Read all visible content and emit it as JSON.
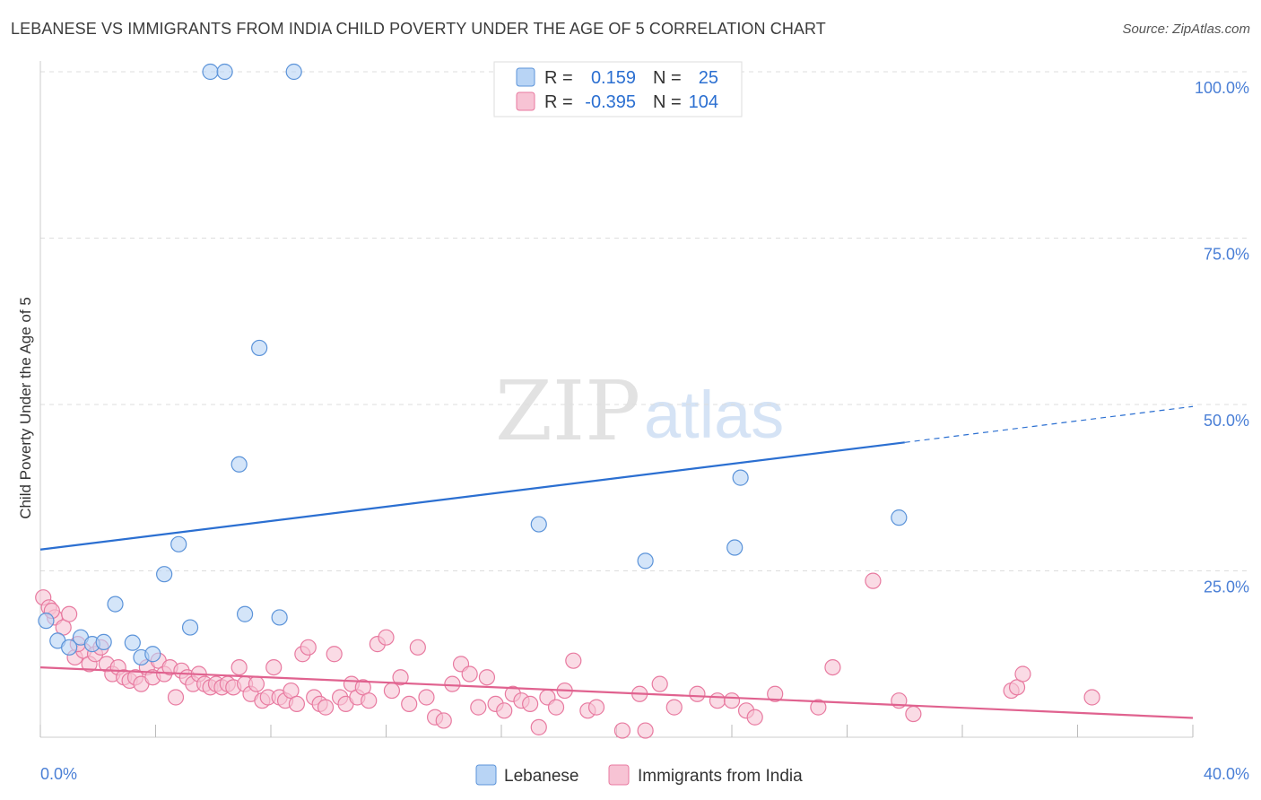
{
  "title": "LEBANESE VS IMMIGRANTS FROM INDIA CHILD POVERTY UNDER THE AGE OF 5 CORRELATION CHART",
  "source": "Source: ZipAtlas.com",
  "watermark": {
    "zip": "ZIP",
    "atlas": "atlas"
  },
  "colors": {
    "lebanese_fill": "#b8d4f5",
    "lebanese_stroke": "#5b93d9",
    "lebanese_line": "#2b6fd1",
    "india_fill": "#f7c3d4",
    "india_stroke": "#e87aa0",
    "india_line": "#e0628f",
    "grid": "#dddddd",
    "axis_text": "#4a7fd6"
  },
  "legend": {
    "rows": [
      {
        "r_label": "R =",
        "r_value": "0.159",
        "n_label": "N =",
        "n_value": "25"
      },
      {
        "r_label": "R =",
        "r_value": "-0.395",
        "n_label": "N =",
        "n_value": "104"
      }
    ]
  },
  "chart_data": {
    "type": "scatter",
    "title": "LEBANESE VS IMMIGRANTS FROM INDIA CHILD POVERTY UNDER THE AGE OF 5 CORRELATION CHART",
    "xlabel": "",
    "ylabel": "Child Poverty Under the Age of 5",
    "xlim": [
      0,
      40
    ],
    "ylim": [
      0,
      100
    ],
    "x_tick_labels": [
      "0.0%",
      "40.0%"
    ],
    "y_tick_values": [
      25,
      50,
      75,
      100
    ],
    "y_tick_labels": [
      "25.0%",
      "50.0%",
      "75.0%",
      "100.0%"
    ],
    "series": [
      {
        "name": "Lebanese",
        "points": [
          [
            0.2,
            17.5
          ],
          [
            0.6,
            14.5
          ],
          [
            1.0,
            13.5
          ],
          [
            1.4,
            15.0
          ],
          [
            1.8,
            14.0
          ],
          [
            2.2,
            14.3
          ],
          [
            2.6,
            20.0
          ],
          [
            3.2,
            14.2
          ],
          [
            3.5,
            12.0
          ],
          [
            3.9,
            12.5
          ],
          [
            4.3,
            24.5
          ],
          [
            4.8,
            29.0
          ],
          [
            5.2,
            16.5
          ],
          [
            5.9,
            100.0
          ],
          [
            6.4,
            100.0
          ],
          [
            6.9,
            41.0
          ],
          [
            7.1,
            18.5
          ],
          [
            7.6,
            58.5
          ],
          [
            8.3,
            18.0
          ],
          [
            8.8,
            100.0
          ],
          [
            17.3,
            32.0
          ],
          [
            21.0,
            26.5
          ],
          [
            24.1,
            28.5
          ],
          [
            24.3,
            39.0
          ],
          [
            29.8,
            33.0
          ]
        ],
        "trend": {
          "x0": 0,
          "y0": 28.2,
          "x1": 30.0,
          "y1": 44.3,
          "dashed_to_x": 40,
          "dashed_to_y": 49.7
        }
      },
      {
        "name": "Immigrants from India",
        "points": [
          [
            0.1,
            21.0
          ],
          [
            0.3,
            19.5
          ],
          [
            0.5,
            18.0
          ],
          [
            0.8,
            16.5
          ],
          [
            1.0,
            18.5
          ],
          [
            1.2,
            12.0
          ],
          [
            1.5,
            13.0
          ],
          [
            1.7,
            11.0
          ],
          [
            1.9,
            12.5
          ],
          [
            2.1,
            13.5
          ],
          [
            2.3,
            11.0
          ],
          [
            2.5,
            9.5
          ],
          [
            2.7,
            10.5
          ],
          [
            2.9,
            9.0
          ],
          [
            3.1,
            8.5
          ],
          [
            3.3,
            9.0
          ],
          [
            3.5,
            8.0
          ],
          [
            3.7,
            10.5
          ],
          [
            3.9,
            9.0
          ],
          [
            4.1,
            11.5
          ],
          [
            4.3,
            9.5
          ],
          [
            4.5,
            10.5
          ],
          [
            4.7,
            6.0
          ],
          [
            4.9,
            10.0
          ],
          [
            5.1,
            9.0
          ],
          [
            5.3,
            8.0
          ],
          [
            5.5,
            9.5
          ],
          [
            5.7,
            8.0
          ],
          [
            5.9,
            7.5
          ],
          [
            6.1,
            8.0
          ],
          [
            6.3,
            7.5
          ],
          [
            6.5,
            8.0
          ],
          [
            6.7,
            7.5
          ],
          [
            6.9,
            10.5
          ],
          [
            7.1,
            8.0
          ],
          [
            7.3,
            6.5
          ],
          [
            7.5,
            8.0
          ],
          [
            7.7,
            5.5
          ],
          [
            7.9,
            6.0
          ],
          [
            8.1,
            10.5
          ],
          [
            8.3,
            6.0
          ],
          [
            8.5,
            5.5
          ],
          [
            8.7,
            7.0
          ],
          [
            8.9,
            5.0
          ],
          [
            9.1,
            12.5
          ],
          [
            9.3,
            13.5
          ],
          [
            9.5,
            6.0
          ],
          [
            9.7,
            5.0
          ],
          [
            9.9,
            4.5
          ],
          [
            10.2,
            12.5
          ],
          [
            10.4,
            6.0
          ],
          [
            10.6,
            5.0
          ],
          [
            10.8,
            8.0
          ],
          [
            11.0,
            6.0
          ],
          [
            11.2,
            7.5
          ],
          [
            11.4,
            5.5
          ],
          [
            11.7,
            14.0
          ],
          [
            12.0,
            15.0
          ],
          [
            12.2,
            7.0
          ],
          [
            12.5,
            9.0
          ],
          [
            12.8,
            5.0
          ],
          [
            13.1,
            13.5
          ],
          [
            13.4,
            6.0
          ],
          [
            13.7,
            3.0
          ],
          [
            14.0,
            2.5
          ],
          [
            14.3,
            8.0
          ],
          [
            14.6,
            11.0
          ],
          [
            14.9,
            9.5
          ],
          [
            15.2,
            4.5
          ],
          [
            15.5,
            9.0
          ],
          [
            15.8,
            5.0
          ],
          [
            16.1,
            4.0
          ],
          [
            16.4,
            6.5
          ],
          [
            16.7,
            5.5
          ],
          [
            17.0,
            5.0
          ],
          [
            17.3,
            1.5
          ],
          [
            17.6,
            6.0
          ],
          [
            17.9,
            4.5
          ],
          [
            18.2,
            7.0
          ],
          [
            18.5,
            11.5
          ],
          [
            19.0,
            4.0
          ],
          [
            19.3,
            4.5
          ],
          [
            20.2,
            1.0
          ],
          [
            20.8,
            6.5
          ],
          [
            21.0,
            1.0
          ],
          [
            21.5,
            8.0
          ],
          [
            22.0,
            4.5
          ],
          [
            22.8,
            6.5
          ],
          [
            23.5,
            5.5
          ],
          [
            24.0,
            5.5
          ],
          [
            24.5,
            4.0
          ],
          [
            24.8,
            3.0
          ],
          [
            25.5,
            6.5
          ],
          [
            27.0,
            4.5
          ],
          [
            27.5,
            10.5
          ],
          [
            28.9,
            23.5
          ],
          [
            29.8,
            5.5
          ],
          [
            30.3,
            3.5
          ],
          [
            33.7,
            7.0
          ],
          [
            33.9,
            7.5
          ],
          [
            34.1,
            9.5
          ],
          [
            36.5,
            6.0
          ],
          [
            0.4,
            19.0
          ],
          [
            1.3,
            14.0
          ]
        ],
        "trend": {
          "x0": 0,
          "y0": 10.5,
          "x1": 40,
          "y1": 2.9
        }
      }
    ]
  }
}
